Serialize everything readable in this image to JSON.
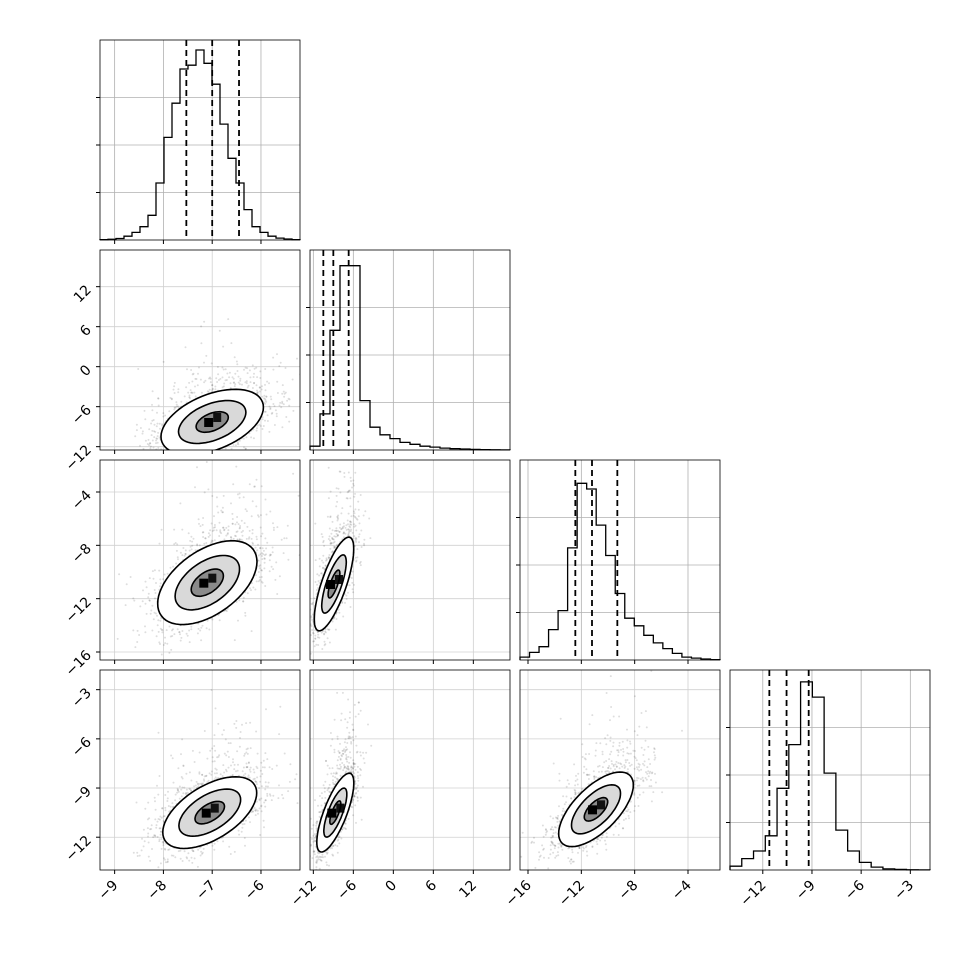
{
  "chart_data": {
    "type": "corner",
    "title": "",
    "grid": true,
    "quantile_lines_style": "dashed",
    "params": [
      {
        "range": [
          -9.3,
          -5.2
        ],
        "ticks": [
          -9,
          -8,
          -7,
          -6
        ],
        "tick_labels": [
          "−9",
          "−8",
          "−7",
          "−6"
        ],
        "quantiles": [
          -7.53,
          -7.0,
          -6.45
        ],
        "hist": [
          0.002,
          0.004,
          0.008,
          0.02,
          0.04,
          0.07,
          0.13,
          0.3,
          0.54,
          0.72,
          0.9,
          0.92,
          1.0,
          0.93,
          0.82,
          0.61,
          0.43,
          0.3,
          0.16,
          0.07,
          0.04,
          0.02,
          0.01,
          0.005,
          0.002
        ]
      },
      {
        "range": [
          -12.5,
          17.5
        ],
        "ticks": [
          -12,
          -6,
          0,
          6,
          12
        ],
        "tick_labels": [
          "−12",
          "−6",
          "0",
          "6",
          "12"
        ],
        "quantiles": [
          -10.5,
          -9.0,
          -6.7
        ],
        "hist": [
          0.02,
          0.19,
          0.63,
          0.97,
          0.97,
          0.26,
          0.12,
          0.08,
          0.06,
          0.04,
          0.03,
          0.02,
          0.015,
          0.01,
          0.007,
          0.005,
          0.003,
          0.002,
          0.001,
          0.0005
        ]
      },
      {
        "range": [
          -16.6,
          -1.6
        ],
        "ticks": [
          -16,
          -12,
          -8,
          -4
        ],
        "tick_labels": [
          "−16",
          "−12",
          "−8",
          "−4"
        ],
        "quantiles": [
          -12.45,
          -11.2,
          -9.3
        ],
        "hist": [
          0.015,
          0.04,
          0.07,
          0.16,
          0.26,
          0.59,
          0.93,
          0.9,
          0.71,
          0.55,
          0.35,
          0.22,
          0.18,
          0.13,
          0.09,
          0.06,
          0.035,
          0.015,
          0.01,
          0.005,
          0.002
        ]
      },
      {
        "range": [
          -14.0,
          -1.8
        ],
        "ticks": [
          -12,
          -9,
          -6,
          -3
        ],
        "tick_labels": [
          "−12",
          "−9",
          "−6",
          "−3"
        ],
        "quantiles": [
          -11.6,
          -10.55,
          -9.2
        ],
        "hist": [
          0.02,
          0.06,
          0.1,
          0.18,
          0.43,
          0.66,
          0.99,
          0.91,
          0.51,
          0.21,
          0.1,
          0.04,
          0.015,
          0.006,
          0.003,
          0.001,
          0.0005
        ]
      }
    ],
    "pairs": [
      {
        "row": 1,
        "col": 0,
        "mean": [
          -7.0,
          -8.3
        ],
        "sd": [
          0.6,
          2.8
        ],
        "rho": 0.45,
        "contours": [
          0.55,
          1.15,
          1.75
        ]
      },
      {
        "row": 2,
        "col": 0,
        "mean": [
          -7.1,
          -10.8
        ],
        "sd": [
          0.55,
          1.7
        ],
        "rho": 0.5,
        "contours": [
          0.6,
          1.2,
          1.85
        ]
      },
      {
        "row": 2,
        "col": 1,
        "mean": [
          -8.9,
          -10.9
        ],
        "sd": [
          1.6,
          1.9
        ],
        "rho": 0.75,
        "contours": [
          0.55,
          1.15,
          1.85
        ]
      },
      {
        "row": 3,
        "col": 0,
        "mean": [
          -7.05,
          -10.5
        ],
        "sd": [
          0.55,
          1.25
        ],
        "rho": 0.55,
        "contours": [
          0.55,
          1.15,
          1.75
        ]
      },
      {
        "row": 3,
        "col": 1,
        "mean": [
          -8.7,
          -10.5
        ],
        "sd": [
          1.5,
          1.3
        ],
        "rho": 0.75,
        "contours": [
          0.55,
          1.15,
          1.85
        ]
      },
      {
        "row": 3,
        "col": 2,
        "mean": [
          -10.9,
          -10.3
        ],
        "sd": [
          1.6,
          1.3
        ],
        "rho": 0.65,
        "contours": [
          0.55,
          1.15,
          1.75
        ]
      }
    ]
  }
}
